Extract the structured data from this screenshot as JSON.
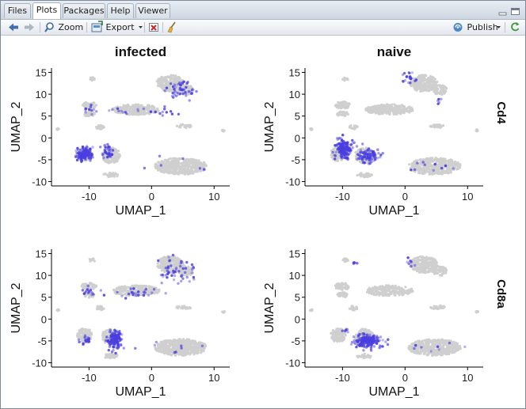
{
  "tabs": [
    {
      "label": "Files",
      "active": false
    },
    {
      "label": "Plots",
      "active": true
    },
    {
      "label": "Packages",
      "active": false
    },
    {
      "label": "Help",
      "active": false
    },
    {
      "label": "Viewer",
      "active": false
    }
  ],
  "toolbar": {
    "back_icon": "arrow-left-icon",
    "forward_icon": "arrow-right-icon",
    "zoom_label": "Zoom",
    "export_label": "Export",
    "publish_label": "Publish"
  },
  "colors": {
    "accent": "#4a3ee0",
    "cell": "#cfcfcf",
    "panel_bg": "#ffffff"
  },
  "chart_data": {
    "type": "scatter",
    "facet_columns": [
      "infected",
      "naive"
    ],
    "facet_rows": [
      "Cd4",
      "Cd8a"
    ],
    "xlabel": "UMAP_1",
    "ylabel": "UMAP_2",
    "xlim": [
      -16,
      12.5
    ],
    "ylim": [
      -11,
      16
    ],
    "xticks": [
      -10,
      0,
      10
    ],
    "yticks": [
      -10,
      -5,
      0,
      5,
      10,
      15
    ],
    "clusters": [
      {
        "x": -10,
        "y": 7.5,
        "rx": 1.2,
        "ry": 0.8
      },
      {
        "x": -10,
        "y": 5.5,
        "rx": 0.9,
        "ry": 0.6
      },
      {
        "x": -8.3,
        "y": 2.5,
        "rx": 0.7,
        "ry": 0.5
      },
      {
        "x": -2.5,
        "y": 6.5,
        "rx": 3.8,
        "ry": 1.2
      },
      {
        "x": 3,
        "y": 12.5,
        "rx": 2.2,
        "ry": 1.9
      },
      {
        "x": 5.5,
        "y": 11,
        "rx": 1.2,
        "ry": 1.1
      },
      {
        "x": -9.5,
        "y": 13.5,
        "rx": 0.5,
        "ry": 0.4
      },
      {
        "x": 5.2,
        "y": 2.7,
        "rx": 1.2,
        "ry": 0.4
      },
      {
        "x": -10.7,
        "y": -3.7,
        "rx": 1.2,
        "ry": 1.6
      },
      {
        "x": -6.5,
        "y": -4,
        "rx": 1.5,
        "ry": 1.8
      },
      {
        "x": 4.7,
        "y": -6.5,
        "rx": 4.2,
        "ry": 1.9
      },
      {
        "x": -6.5,
        "y": -8.5,
        "rx": 1.2,
        "ry": 0.5
      },
      {
        "x": -15,
        "y": 2,
        "rx": 0.2,
        "ry": 0.2
      },
      {
        "x": 11.5,
        "y": 1.7,
        "rx": 0.2,
        "ry": 0.2
      }
    ],
    "panels": [
      {
        "column": "infected",
        "row": "Cd4",
        "expr": [
          {
            "x": -10.7,
            "y": -3.7,
            "rx": 1.1,
            "ry": 1.4,
            "n": 130
          },
          {
            "x": -7,
            "y": -3.2,
            "rx": 1.0,
            "ry": 1.5,
            "n": 35
          },
          {
            "x": 4.5,
            "y": 11,
            "rx": 2.0,
            "ry": 1.8,
            "n": 45
          },
          {
            "x": 2.5,
            "y": 6,
            "rx": 1.8,
            "ry": 1.0,
            "n": 10
          },
          {
            "x": -4,
            "y": 6,
            "rx": 3.5,
            "ry": 1.0,
            "n": 12
          },
          {
            "x": -10,
            "y": 6.5,
            "rx": 1.0,
            "ry": 1.2,
            "n": 10
          },
          {
            "x": 4.5,
            "y": -6,
            "rx": 3.5,
            "ry": 1.5,
            "n": 6
          }
        ]
      },
      {
        "column": "naive",
        "row": "Cd4",
        "expr": [
          {
            "x": -9.8,
            "y": -2.5,
            "rx": 1.2,
            "ry": 2.0,
            "n": 160
          },
          {
            "x": -6,
            "y": -4,
            "rx": 1.6,
            "ry": 1.6,
            "n": 90
          },
          {
            "x": 0.5,
            "y": 14,
            "rx": 0.7,
            "ry": 1.2,
            "n": 20
          },
          {
            "x": 5.5,
            "y": 8.5,
            "rx": 0.6,
            "ry": 0.6,
            "n": 5
          },
          {
            "x": 4.5,
            "y": -6.5,
            "rx": 3.5,
            "ry": 1.5,
            "n": 10
          }
        ]
      },
      {
        "column": "infected",
        "row": "Cd8a",
        "expr": [
          {
            "x": -5.9,
            "y": -4.7,
            "rx": 0.9,
            "ry": 1.8,
            "n": 130
          },
          {
            "x": -10.5,
            "y": -4.8,
            "rx": 0.7,
            "ry": 0.9,
            "n": 20
          },
          {
            "x": 4,
            "y": 11,
            "rx": 2.8,
            "ry": 2.8,
            "n": 50
          },
          {
            "x": -3,
            "y": 6,
            "rx": 4.0,
            "ry": 1.0,
            "n": 25
          },
          {
            "x": -10,
            "y": 6.5,
            "rx": 1.0,
            "ry": 1.2,
            "n": 12
          },
          {
            "x": 3.5,
            "y": -6.5,
            "rx": 3.5,
            "ry": 1.5,
            "n": 8
          }
        ]
      },
      {
        "column": "naive",
        "row": "Cd8a",
        "expr": [
          {
            "x": -6,
            "y": -5,
            "rx": 1.9,
            "ry": 1.3,
            "n": 180
          },
          {
            "x": -9.5,
            "y": -2.5,
            "rx": 0.6,
            "ry": 0.6,
            "n": 6
          },
          {
            "x": -8,
            "y": 12.8,
            "rx": 0.3,
            "ry": 0.3,
            "n": 5
          },
          {
            "x": 0.5,
            "y": 13,
            "rx": 0.7,
            "ry": 1.2,
            "n": 8
          },
          {
            "x": 5,
            "y": -6.5,
            "rx": 3.5,
            "ry": 1.5,
            "n": 8
          }
        ]
      }
    ]
  }
}
